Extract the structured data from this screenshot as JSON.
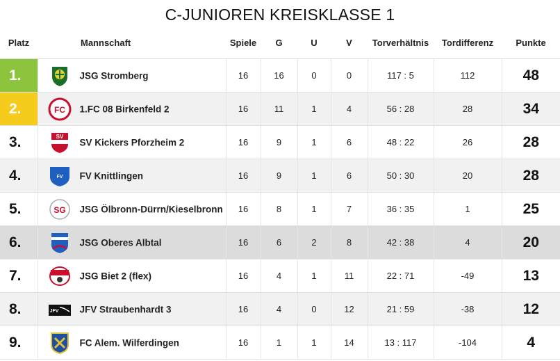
{
  "title": "C-JUNIOREN KREISKLASSE 1",
  "headers": {
    "platz": "Platz",
    "mannschaft": "Mannschaft",
    "spiele": "Spiele",
    "g": "G",
    "u": "U",
    "v": "V",
    "torverhaeltnis": "Torverhältnis",
    "tordifferenz": "Tordifferenz",
    "punkte": "Punkte"
  },
  "rows": [
    {
      "rank": "1.",
      "team": "JSG Stromberg",
      "spiele": "16",
      "g": "16",
      "u": "0",
      "v": "0",
      "tore": "117 : 5",
      "diff": "112",
      "punkte": "48",
      "logo": "stromberg-crest"
    },
    {
      "rank": "2.",
      "team": "1.FC 08 Birkenfeld 2",
      "spiele": "16",
      "g": "11",
      "u": "1",
      "v": "4",
      "tore": "56 : 28",
      "diff": "28",
      "punkte": "34",
      "logo": "birkenfeld-crest"
    },
    {
      "rank": "3.",
      "team": "SV Kickers Pforzheim 2",
      "spiele": "16",
      "g": "9",
      "u": "1",
      "v": "6",
      "tore": "48 : 22",
      "diff": "26",
      "punkte": "28",
      "logo": "kickers-crest"
    },
    {
      "rank": "4.",
      "team": "FV Knittlingen",
      "spiele": "16",
      "g": "9",
      "u": "1",
      "v": "6",
      "tore": "50 : 30",
      "diff": "20",
      "punkte": "28",
      "logo": "knittlingen-crest"
    },
    {
      "rank": "5.",
      "team": "JSG Ölbronn-Dürrn/Kieselbronn",
      "spiele": "16",
      "g": "8",
      "u": "1",
      "v": "7",
      "tore": "36 : 35",
      "diff": "1",
      "punkte": "25",
      "logo": "oelbronn-crest"
    },
    {
      "rank": "6.",
      "team": "JSG Oberes Albtal",
      "spiele": "16",
      "g": "6",
      "u": "2",
      "v": "8",
      "tore": "42 : 38",
      "diff": "4",
      "punkte": "20",
      "logo": "albtal-crest"
    },
    {
      "rank": "7.",
      "team": "JSG Biet 2 (flex)",
      "spiele": "16",
      "g": "4",
      "u": "1",
      "v": "11",
      "tore": "22 : 71",
      "diff": "-49",
      "punkte": "13",
      "logo": "biet-crest"
    },
    {
      "rank": "8.",
      "team": "JFV Straubenhardt 3",
      "spiele": "16",
      "g": "4",
      "u": "0",
      "v": "12",
      "tore": "21 : 59",
      "diff": "-38",
      "punkte": "12",
      "logo": "straubenhardt-crest"
    },
    {
      "rank": "9.",
      "team": "FC Alem. Wilferdingen",
      "spiele": "16",
      "g": "1",
      "u": "1",
      "v": "14",
      "tore": "13 : 117",
      "diff": "-104",
      "punkte": "4",
      "logo": "wilferdingen-crest"
    }
  ],
  "colors": {
    "first_place": "#8cc43d",
    "second_place": "#f5cc1c",
    "highlight_row": "#dcdcdc",
    "alt_row": "#f1f1f1"
  }
}
